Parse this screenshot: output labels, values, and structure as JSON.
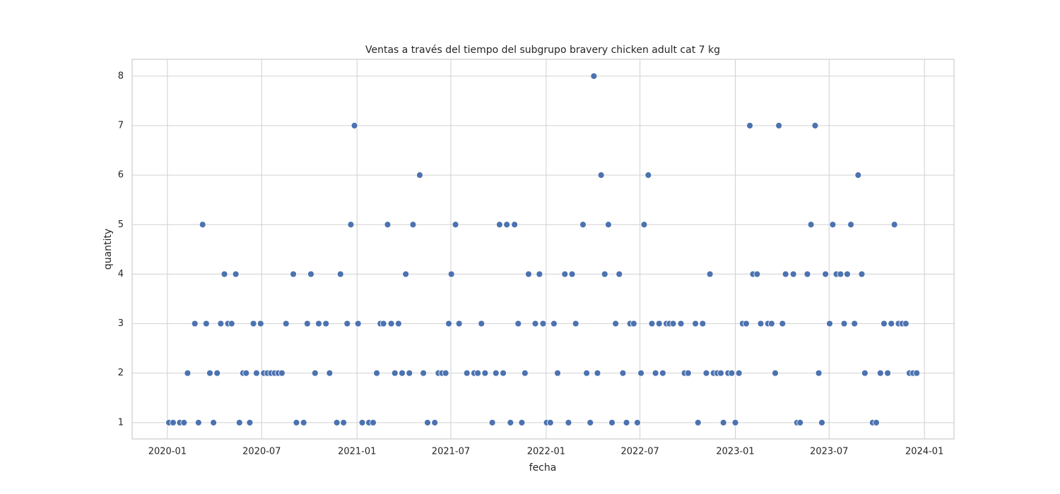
{
  "chart_data": {
    "type": "scatter",
    "title": "Ventas a través del tiempo del subgrupo bravery chicken adult cat 7 kg",
    "x_label": "fecha",
    "y_label": "quantity",
    "color": "#4c72b0",
    "grid": true,
    "xlim": [
      "2019-10-25",
      "2024-02-27"
    ],
    "ylim": [
      0.67,
      8.34
    ],
    "xticks": [
      "2020-01",
      "2020-07",
      "2021-01",
      "2021-07",
      "2022-01",
      "2022-07",
      "2023-01",
      "2023-07",
      "2024-01"
    ],
    "yticks": [
      1,
      2,
      3,
      4,
      5,
      6,
      7,
      8
    ],
    "x": [
      "2020-01-04",
      "2020-01-12",
      "2020-01-25",
      "2020-02-02",
      "2020-03-01",
      "2020-03-30",
      "2020-05-19",
      "2020-06-08",
      "2020-09-06",
      "2020-09-20",
      "2020-11-23",
      "2020-12-06",
      "2021-01-11",
      "2021-01-24",
      "2021-02-01",
      "2021-05-17",
      "2021-05-31",
      "2021-09-19",
      "2021-10-24",
      "2021-11-15",
      "2022-01-02",
      "2022-01-09",
      "2022-02-13",
      "2022-03-27",
      "2022-05-08",
      "2022-06-05",
      "2022-06-26",
      "2022-10-21",
      "2022-12-09",
      "2023-01-01",
      "2023-04-30",
      "2023-05-06",
      "2023-06-17",
      "2023-09-23",
      "2023-09-30",
      "2020-02-09",
      "2020-03-23",
      "2020-04-06",
      "2020-05-26",
      "2020-06-01",
      "2020-06-21",
      "2020-07-05",
      "2020-07-12",
      "2020-07-19",
      "2020-07-26",
      "2020-08-02",
      "2020-08-09",
      "2020-10-12",
      "2020-11-09",
      "2021-02-08",
      "2021-03-15",
      "2021-03-29",
      "2021-04-12",
      "2021-05-09",
      "2021-06-07",
      "2021-06-14",
      "2021-06-21",
      "2021-08-01",
      "2021-08-15",
      "2021-08-22",
      "2021-09-05",
      "2021-09-26",
      "2021-10-10",
      "2021-11-21",
      "2022-01-23",
      "2022-03-20",
      "2022-04-10",
      "2022-05-29",
      "2022-07-03",
      "2022-07-31",
      "2022-08-14",
      "2022-09-25",
      "2022-10-02",
      "2022-11-06",
      "2022-11-20",
      "2022-11-27",
      "2022-12-04",
      "2022-12-18",
      "2022-12-25",
      "2023-01-08",
      "2023-03-19",
      "2023-06-11",
      "2023-09-08",
      "2023-10-08",
      "2023-10-22",
      "2023-12-03",
      "2023-12-10",
      "2023-12-17",
      "2020-02-23",
      "2020-03-16",
      "2020-04-13",
      "2020-04-27",
      "2020-05-04",
      "2020-06-15",
      "2020-06-29",
      "2020-08-17",
      "2020-09-27",
      "2020-10-19",
      "2020-11-02",
      "2020-12-13",
      "2021-01-03",
      "2021-02-15",
      "2021-02-21",
      "2021-03-08",
      "2021-03-22",
      "2021-06-27",
      "2021-07-17",
      "2021-08-29",
      "2021-11-08",
      "2021-12-11",
      "2021-12-26",
      "2022-01-16",
      "2022-02-27",
      "2022-05-15",
      "2022-06-12",
      "2022-06-19",
      "2022-07-24",
      "2022-08-07",
      "2022-08-21",
      "2022-08-27",
      "2022-09-03",
      "2022-09-18",
      "2022-10-16",
      "2022-10-30",
      "2023-01-15",
      "2023-01-22",
      "2023-02-19",
      "2023-03-05",
      "2023-03-12",
      "2023-04-02",
      "2023-07-02",
      "2023-07-30",
      "2023-08-19",
      "2023-10-15",
      "2023-10-29",
      "2023-11-12",
      "2023-11-19",
      "2023-11-26",
      "2020-04-20",
      "2020-05-12",
      "2020-08-31",
      "2020-10-04",
      "2020-11-30",
      "2021-04-05",
      "2021-07-02",
      "2021-11-28",
      "2021-12-19",
      "2022-02-06",
      "2022-02-20",
      "2022-04-24",
      "2022-05-22",
      "2022-11-13",
      "2023-02-04",
      "2023-02-12",
      "2023-04-08",
      "2023-04-23",
      "2023-05-20",
      "2023-06-24",
      "2023-07-15",
      "2023-07-23",
      "2023-08-05",
      "2023-09-02",
      "2020-03-09",
      "2020-12-20",
      "2021-03-01",
      "2021-04-19",
      "2021-07-10",
      "2021-10-03",
      "2021-10-17",
      "2021-11-01",
      "2022-03-13",
      "2022-05-01",
      "2022-07-09",
      "2023-05-27",
      "2023-07-08",
      "2023-08-12",
      "2023-11-04",
      "2021-05-02",
      "2022-04-17",
      "2022-07-17",
      "2023-08-26",
      "2020-12-27",
      "2023-01-29",
      "2023-03-26",
      "2023-06-04",
      "2022-04-03"
    ],
    "values": [
      1,
      1,
      1,
      1,
      1,
      1,
      1,
      1,
      1,
      1,
      1,
      1,
      1,
      1,
      1,
      1,
      1,
      1,
      1,
      1,
      1,
      1,
      1,
      1,
      1,
      1,
      1,
      1,
      1,
      1,
      1,
      1,
      1,
      1,
      1,
      2,
      2,
      2,
      2,
      2,
      2,
      2,
      2,
      2,
      2,
      2,
      2,
      2,
      2,
      2,
      2,
      2,
      2,
      2,
      2,
      2,
      2,
      2,
      2,
      2,
      2,
      2,
      2,
      2,
      2,
      2,
      2,
      2,
      2,
      2,
      2,
      2,
      2,
      2,
      2,
      2,
      2,
      2,
      2,
      2,
      2,
      2,
      2,
      2,
      2,
      2,
      2,
      2,
      3,
      3,
      3,
      3,
      3,
      3,
      3,
      3,
      3,
      3,
      3,
      3,
      3,
      3,
      3,
      3,
      3,
      3,
      3,
      3,
      3,
      3,
      3,
      3,
      3,
      3,
      3,
      3,
      3,
      3,
      3,
      3,
      3,
      3,
      3,
      3,
      3,
      3,
      3,
      3,
      3,
      3,
      3,
      3,
      3,
      3,
      3,
      3,
      3,
      3,
      4,
      4,
      4,
      4,
      4,
      4,
      4,
      4,
      4,
      4,
      4,
      4,
      4,
      4,
      4,
      4,
      4,
      4,
      4,
      4,
      4,
      4,
      4,
      4,
      5,
      5,
      5,
      5,
      5,
      5,
      5,
      5,
      5,
      5,
      5,
      5,
      5,
      5,
      5,
      6,
      6,
      6,
      6,
      7,
      7,
      7,
      7,
      8
    ]
  }
}
